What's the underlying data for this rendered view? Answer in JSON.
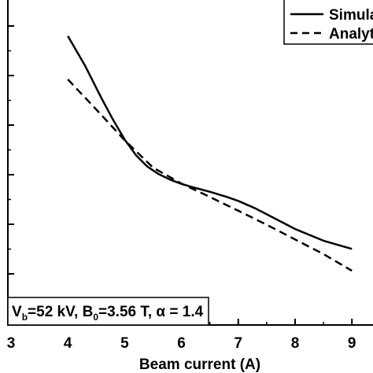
{
  "chart_data": {
    "type": "line",
    "title": "",
    "xlabel": "Beam current (A)",
    "ylabel": "",
    "xlim": [
      3,
      9.4
    ],
    "ylim": [
      0,
      1
    ],
    "x_ticks": [
      3,
      4,
      5,
      6,
      7,
      8,
      9
    ],
    "grid": false,
    "legend_position": "top-right",
    "series": [
      {
        "name": "Simula",
        "style": "solid",
        "color": "#000000",
        "x": [
          4.0,
          4.3,
          4.6,
          4.8,
          5.0,
          5.2,
          5.4,
          5.6,
          5.8,
          6.0,
          6.2,
          6.5,
          6.8,
          7.0,
          7.3,
          7.6,
          8.0,
          8.5,
          9.0
        ],
        "y": [
          0.885,
          0.795,
          0.692,
          0.627,
          0.568,
          0.52,
          0.485,
          0.462,
          0.445,
          0.432,
          0.422,
          0.408,
          0.392,
          0.38,
          0.357,
          0.33,
          0.294,
          0.258,
          0.233
        ]
      },
      {
        "name": "Analyt",
        "style": "dashed",
        "color": "#000000",
        "x": [
          4.0,
          4.5,
          5.0,
          5.5,
          6.0,
          6.5,
          7.0,
          7.5,
          8.0,
          8.5,
          9.0
        ],
        "y": [
          0.752,
          0.66,
          0.566,
          0.482,
          0.433,
          0.392,
          0.35,
          0.307,
          0.262,
          0.217,
          0.166
        ]
      }
    ],
    "annotation": {
      "main": "V",
      "main_sub": "b",
      "part2": "=52 kV, B",
      "part2_sub": "0",
      "part3": "=3.56 T, α = 1.4"
    }
  }
}
